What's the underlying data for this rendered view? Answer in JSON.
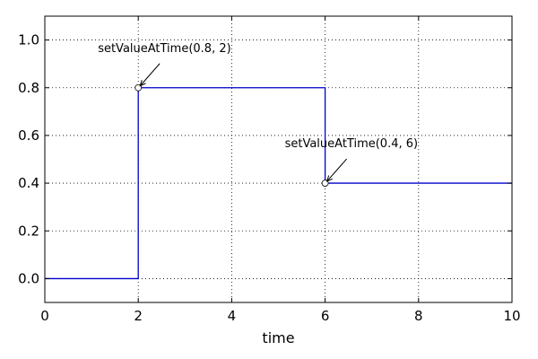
{
  "chart_data": {
    "type": "line",
    "xlabel": "time",
    "ylabel": "",
    "xlim": [
      0,
      10
    ],
    "ylim": [
      -0.1,
      1.1
    ],
    "xticks": [
      0,
      2,
      4,
      6,
      8,
      10
    ],
    "yticks": [
      0.0,
      0.2,
      0.4,
      0.6,
      0.8,
      1.0
    ],
    "xtick_labels": [
      "0",
      "2",
      "4",
      "6",
      "8",
      "10"
    ],
    "ytick_labels": [
      "0.0",
      "0.2",
      "0.4",
      "0.6",
      "0.8",
      "1.0"
    ],
    "grid": true,
    "series": [
      {
        "color": "#0000cc",
        "style": "step",
        "x": [
          0,
          2,
          2,
          6,
          6,
          10
        ],
        "y": [
          0,
          0,
          0.8,
          0.8,
          0.4,
          0.4
        ]
      }
    ],
    "markers": [
      {
        "x": 2,
        "y": 0.8
      },
      {
        "x": 6,
        "y": 0.4
      }
    ],
    "annotations": [
      {
        "text": "setValueAtTime(0.8, 2)",
        "x": 2,
        "y": 0.8
      },
      {
        "text": "setValueAtTime(0.4, 6)",
        "x": 6,
        "y": 0.4
      }
    ]
  }
}
